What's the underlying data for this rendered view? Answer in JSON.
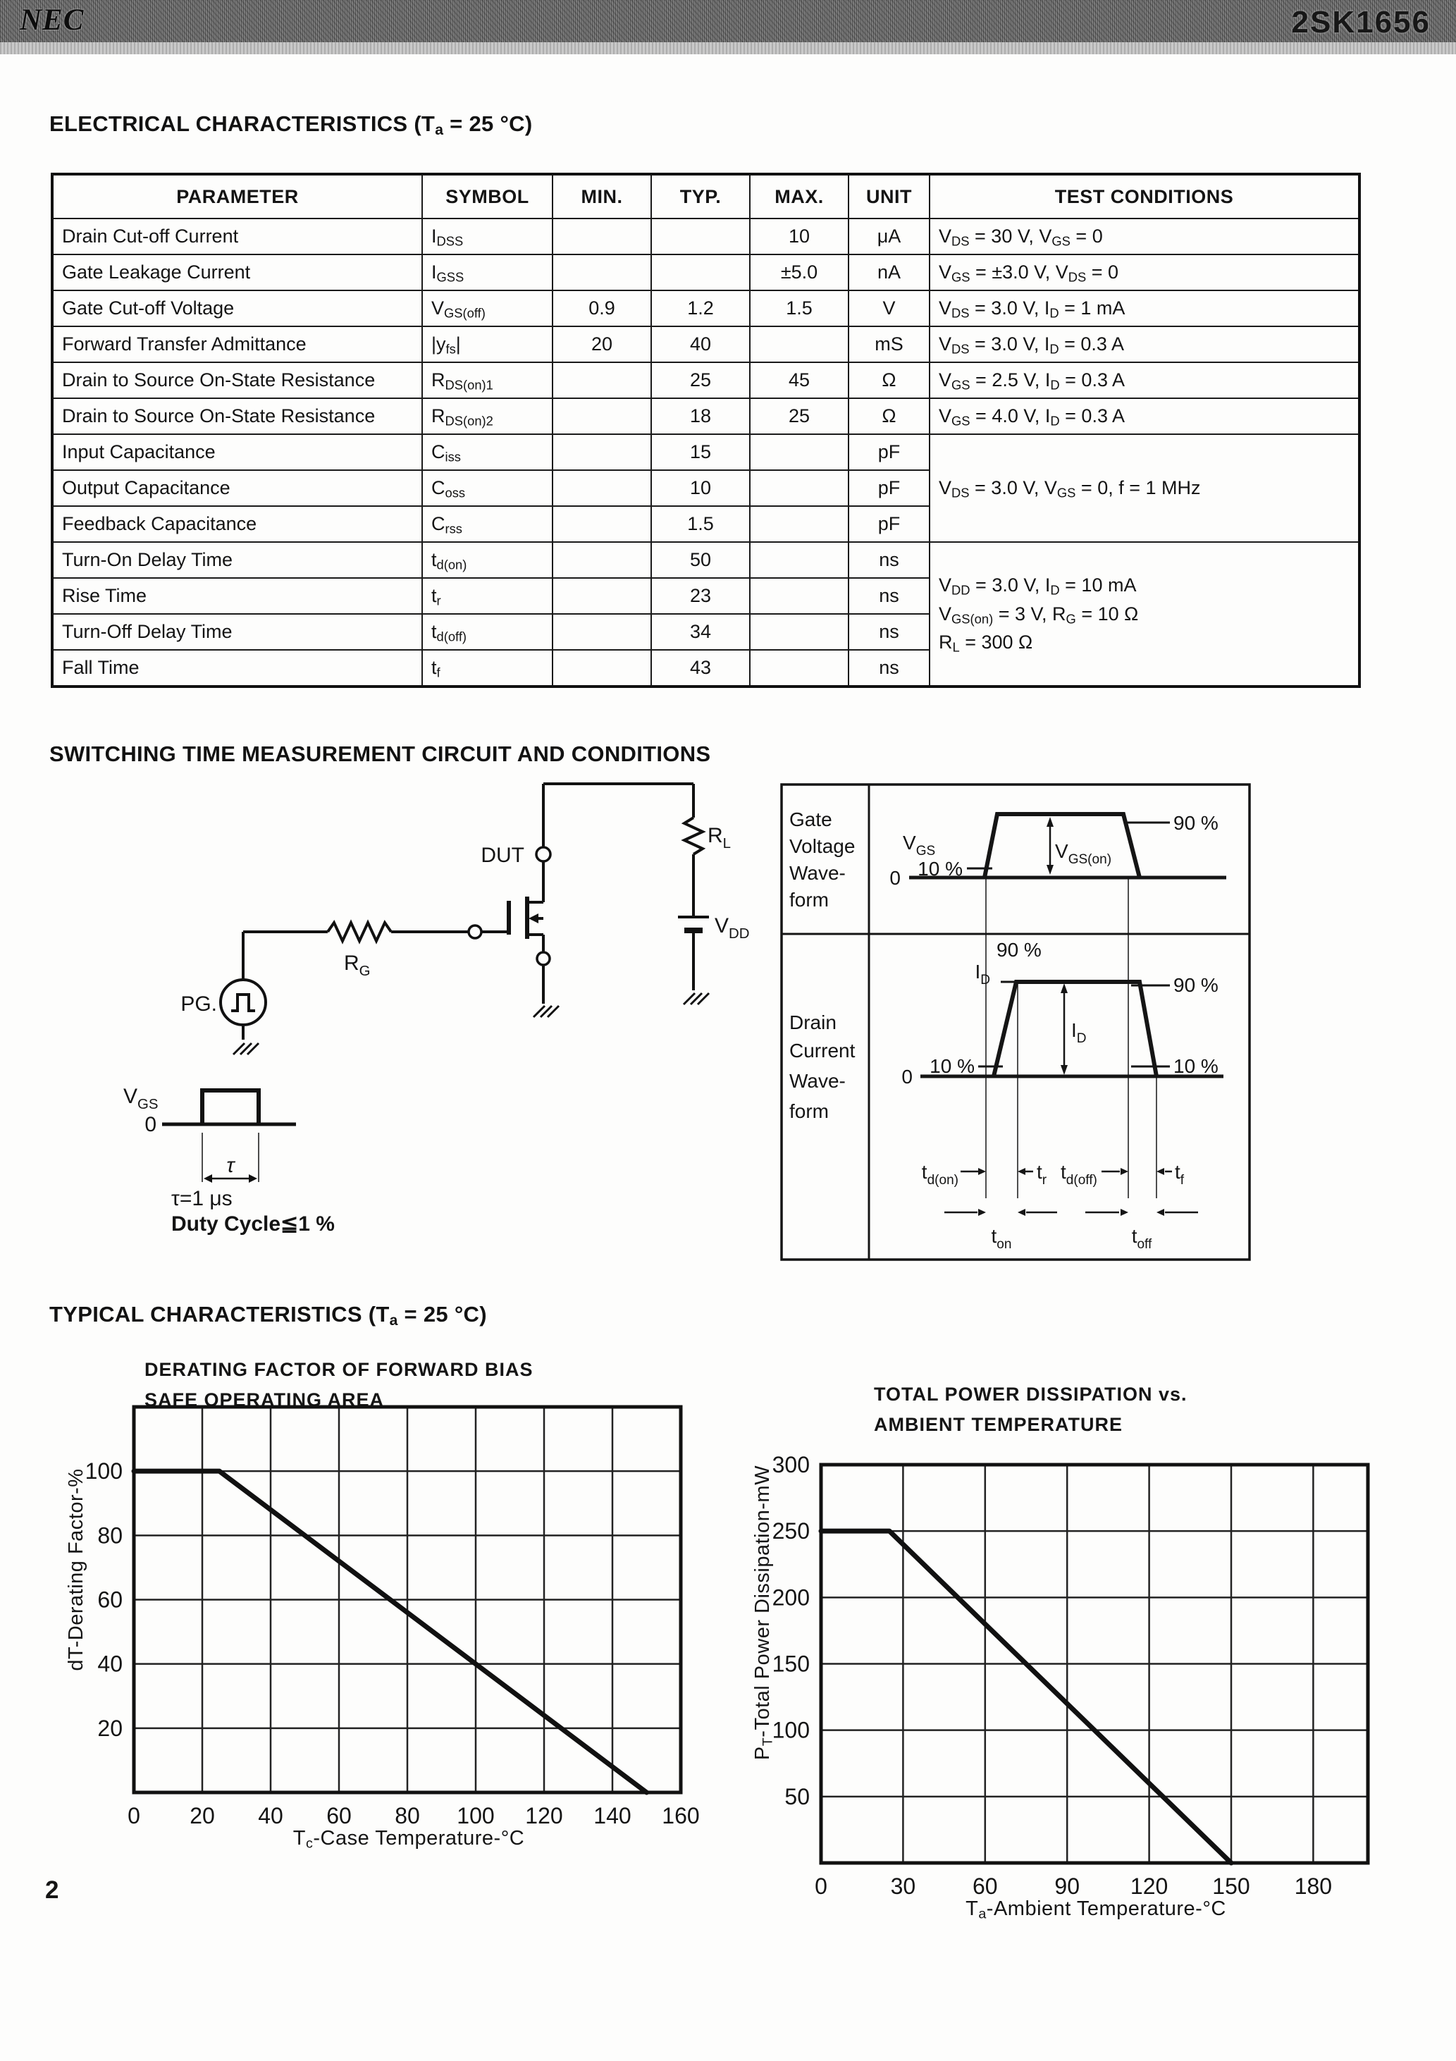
{
  "header": {
    "brand": "NEC",
    "part": "2SK1656"
  },
  "sections": {
    "electrical_title": "ELECTRICAL CHARACTERISTICS (T_{a} = 25 °C)",
    "switching_title": "SWITCHING TIME MEASUREMENT CIRCUIT AND CONDITIONS",
    "typical_title": "TYPICAL CHARACTERISTICS (T_{a} = 25 °C)"
  },
  "table": {
    "headers": [
      "PARAMETER",
      "SYMBOL",
      "MIN.",
      "TYP.",
      "MAX.",
      "UNIT",
      "TEST CONDITIONS"
    ],
    "rows": [
      {
        "parameter": "Drain Cut-off Current",
        "symbol": "I_{DSS}",
        "min": "",
        "typ": "",
        "max": "10",
        "unit": "μA",
        "conditions": "V_{DS} = 30 V, V_{GS} = 0"
      },
      {
        "parameter": "Gate Leakage Current",
        "symbol": "I_{GSS}",
        "min": "",
        "typ": "",
        "max": "±5.0",
        "unit": "nA",
        "conditions": "V_{GS} = ±3.0 V, V_{DS} = 0"
      },
      {
        "parameter": "Gate Cut-off Voltage",
        "symbol": "V_{GS(off)}",
        "min": "0.9",
        "typ": "1.2",
        "max": "1.5",
        "unit": "V",
        "conditions": "V_{DS} = 3.0 V, I_{D} = 1 mA"
      },
      {
        "parameter": "Forward Transfer Admittance",
        "symbol": "|y_{fs}|",
        "min": "20",
        "typ": "40",
        "max": "",
        "unit": "mS",
        "conditions": "V_{DS} = 3.0 V, I_{D} = 0.3 A"
      },
      {
        "parameter": "Drain to Source On-State Resistance",
        "symbol": "R_{DS(on)1}",
        "min": "",
        "typ": "25",
        "max": "45",
        "unit": "Ω",
        "conditions": "V_{GS} = 2.5 V, I_{D} = 0.3 A"
      },
      {
        "parameter": "Drain to Source On-State Resistance",
        "symbol": "R_{DS(on)2}",
        "min": "",
        "typ": "18",
        "max": "25",
        "unit": "Ω",
        "conditions": "V_{GS} = 4.0 V, I_{D} = 0.3 A"
      },
      {
        "parameter": "Input Capacitance",
        "symbol": "C_{iss}",
        "min": "",
        "typ": "15",
        "max": "",
        "unit": "pF",
        "conditions": "V_{DS} = 3.0 V, V_{GS} = 0, f = 1 MHz",
        "conditions_rowspan": 3
      },
      {
        "parameter": "Output Capacitance",
        "symbol": "C_{oss}",
        "min": "",
        "typ": "10",
        "max": "",
        "unit": "pF",
        "conditions_skip": true
      },
      {
        "parameter": "Feedback Capacitance",
        "symbol": "C_{rss}",
        "min": "",
        "typ": "1.5",
        "max": "",
        "unit": "pF",
        "conditions_skip": true
      },
      {
        "parameter": "Turn-On Delay Time",
        "symbol": "t_{d(on)}",
        "min": "",
        "typ": "50",
        "max": "",
        "unit": "ns",
        "conditions_lines": [
          "V_{DD} = 3.0 V, I_{D} = 10 mA",
          "V_{GS(on)} = 3 V, R_{G} = 10 Ω",
          "R_{L} = 300 Ω"
        ],
        "conditions_rowspan": 4
      },
      {
        "parameter": "Rise Time",
        "symbol": "t_{r}",
        "min": "",
        "typ": "23",
        "max": "",
        "unit": "ns",
        "conditions_skip": true
      },
      {
        "parameter": "Turn-Off Delay Time",
        "symbol": "t_{d(off)}",
        "min": "",
        "typ": "34",
        "max": "",
        "unit": "ns",
        "conditions_skip": true
      },
      {
        "parameter": "Fall Time",
        "symbol": "t_{f}",
        "min": "",
        "typ": "43",
        "max": "",
        "unit": "ns",
        "conditions_skip": true
      }
    ]
  },
  "circuit": {
    "dut": "DUT",
    "rl": "R_{L}",
    "vdd": "V_{DD}",
    "rg": "R_{G}",
    "pg": "PG.",
    "vgs": "V_{GS}",
    "zero": "0",
    "tau": "τ",
    "tau_note": "τ=1 μs",
    "duty_note": "Duty Cycle≦1 %"
  },
  "waveform_box": {
    "gate_label_lines": [
      "Gate",
      "Voltage",
      "Wave-",
      "form"
    ],
    "drain_label_lines": [
      "Drain",
      "Current",
      "Wave-",
      "form"
    ],
    "vgs": "V_{GS}",
    "vgs_on": "V_{GS(on)}",
    "id": "I_{D}",
    "pct90": "90 %",
    "pct10": "10 %",
    "zero": "0",
    "td_on": "t_{d(on)}",
    "tr": "t_{r}",
    "td_off": "t_{d(off)}",
    "tf": "t_{f}",
    "ton": "t_{on}",
    "toff": "t_{off}"
  },
  "chart_data": [
    {
      "type": "line",
      "title": [
        "DERATING FACTOR OF FORWARD BIAS",
        "SAFE OPERATING AREA"
      ],
      "xlabel": "T_{c}-Case Temperature-°C",
      "ylabel": "dT-Derating Factor-%",
      "xlim": [
        0,
        160
      ],
      "ylim": [
        0,
        120
      ],
      "xticks": [
        0,
        20,
        40,
        60,
        80,
        100,
        120,
        140,
        160
      ],
      "yticks": [
        20,
        40,
        60,
        80,
        100
      ],
      "grid": true,
      "series": [
        {
          "name": "derating-factor",
          "points": [
            [
              0,
              100
            ],
            [
              25,
              100
            ],
            [
              150,
              0
            ]
          ]
        }
      ]
    },
    {
      "type": "line",
      "title": [
        "TOTAL POWER DISSIPATION vs.",
        "AMBIENT TEMPERATURE"
      ],
      "xlabel": "T_{a}-Ambient Temperature-°C",
      "ylabel": "P_{T}-Total Power Dissipation-mW",
      "xlim": [
        0,
        200
      ],
      "ylim": [
        0,
        300
      ],
      "xticks": [
        0,
        30,
        60,
        90,
        120,
        150,
        180
      ],
      "yticks": [
        50,
        100,
        150,
        200,
        250,
        300
      ],
      "grid": true,
      "series": [
        {
          "name": "total-power-dissipation",
          "points": [
            [
              0,
              250
            ],
            [
              25,
              250
            ],
            [
              150,
              0
            ]
          ]
        }
      ]
    }
  ],
  "page_number": "2"
}
